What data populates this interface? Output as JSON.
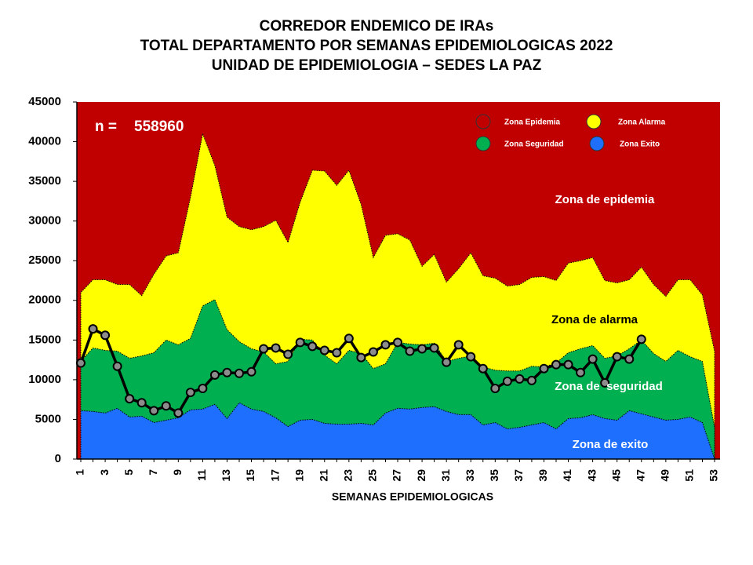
{
  "chart_data": {
    "type": "area",
    "title": [
      "CORREDOR ENDEMICO DE IRAs",
      "TOTAL DEPARTAMENTO POR SEMANAS EPIDEMIOLOGICAS 2022",
      "UNIDAD DE EPIDEMIOLOGIA – SEDES LA PAZ"
    ],
    "xlabel": "SEMANAS EPIDEMIOLOGICAS",
    "n_label": "n =",
    "n": 558960,
    "categories": [
      "1",
      null,
      "3",
      null,
      "5",
      null,
      "7",
      null,
      "9",
      null,
      "11",
      null,
      "13",
      null,
      "15",
      null,
      "17",
      null,
      "19",
      null,
      "21",
      null,
      "23",
      null,
      "25",
      null,
      "27",
      null,
      "29",
      null,
      "31",
      null,
      "33",
      null,
      "35",
      null,
      "37",
      null,
      "39",
      null,
      "41",
      null,
      "43",
      null,
      "45",
      null,
      "47",
      null,
      "49",
      null,
      "51",
      null,
      "53"
    ],
    "ylim": [
      0,
      45000
    ],
    "yticks": [
      0,
      5000,
      10000,
      15000,
      20000,
      25000,
      30000,
      35000,
      40000,
      45000
    ],
    "epidemic_zone": {
      "name": "Zona Epidemia",
      "color": "#c00000"
    },
    "series": [
      {
        "name": "Zona Alarma",
        "color": "#ffff00",
        "values": [
          21000,
          22600,
          22600,
          22000,
          22000,
          20600,
          23300,
          25600,
          26000,
          33000,
          41000,
          37000,
          30500,
          29300,
          28900,
          29300,
          30100,
          27300,
          32400,
          36400,
          36300,
          34500,
          36400,
          32100,
          25400,
          28200,
          28400,
          27600,
          24300,
          25800,
          22300,
          24000,
          26000,
          23100,
          22800,
          21800,
          22000,
          22900,
          23000,
          22500,
          24700,
          25000,
          25400,
          22500,
          22200,
          22600,
          24200,
          22000,
          20500,
          22600,
          22600,
          20700,
          13600
        ]
      },
      {
        "name": "Zona Seguridad",
        "color": "#00b050",
        "values": [
          12300,
          14000,
          13700,
          13600,
          12700,
          13000,
          13400,
          15000,
          14400,
          15200,
          19300,
          20100,
          16300,
          14800,
          13900,
          13500,
          12000,
          12300,
          15100,
          15000,
          13100,
          12000,
          13700,
          13300,
          11400,
          12000,
          14700,
          14500,
          14400,
          14600,
          12300,
          12700,
          13000,
          11600,
          11200,
          11100,
          11100,
          11700,
          11600,
          12100,
          13400,
          13900,
          14300,
          12700,
          13000,
          13900,
          15000,
          13300,
          12300,
          13700,
          12900,
          12300,
          4000
        ]
      },
      {
        "name": "Zona Exito",
        "color": "#1f6fff",
        "values": [
          6100,
          6000,
          5800,
          6400,
          5300,
          5400,
          4600,
          4900,
          5200,
          6200,
          6300,
          6900,
          5100,
          7100,
          6300,
          6000,
          5200,
          4100,
          4900,
          5000,
          4500,
          4400,
          4400,
          4500,
          4300,
          5800,
          6400,
          6300,
          6500,
          6600,
          6000,
          5600,
          5600,
          4300,
          4600,
          3800,
          4000,
          4300,
          4600,
          3800,
          5100,
          5200,
          5600,
          5100,
          4900,
          6100,
          5700,
          5300,
          4900,
          5000,
          5300,
          4600,
          0
        ]
      }
    ],
    "cases": {
      "color": "#000000",
      "values": [
        12100,
        16400,
        15600,
        11700,
        7600,
        7100,
        6100,
        6700,
        5800,
        8400,
        8900,
        10600,
        10900,
        10800,
        11000,
        13900,
        14000,
        13200,
        14700,
        14200,
        13700,
        13400,
        15200,
        12800,
        13500,
        14400,
        14700,
        13600,
        13900,
        14000,
        12200,
        14400,
        12900,
        11400,
        8900,
        9800,
        10100,
        9900,
        11400,
        11900,
        11900,
        10900,
        12600,
        9600,
        12900,
        12600,
        15100,
        null,
        null,
        null,
        null,
        null,
        null
      ]
    },
    "annotations": [
      "Zona de epidemia",
      "Zona de alarma",
      "Zona de  seguridad",
      "Zona de exito"
    ]
  }
}
